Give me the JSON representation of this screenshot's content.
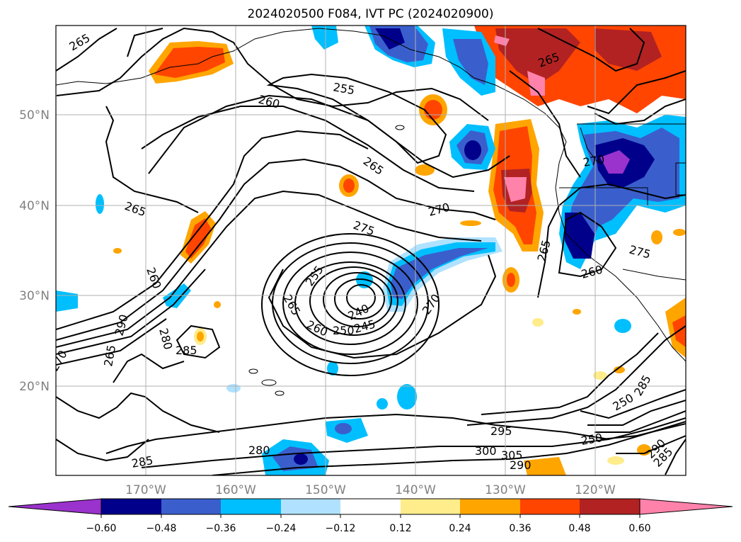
{
  "title": "2024020500 F084, IVT PC (2024020900)",
  "map": {
    "lat_labels": [
      "50°N",
      "40°N",
      "30°N",
      "20°N"
    ],
    "lon_labels": [
      "170°W",
      "160°W",
      "150°W",
      "140°W",
      "130°W",
      "120°W"
    ],
    "contour_labels": [
      "265",
      "260",
      "255",
      "265",
      "270",
      "275",
      "265",
      "260",
      "255",
      "260",
      "265",
      "240",
      "245",
      "250",
      "270",
      "265",
      "260",
      "265",
      "270",
      "275",
      "280",
      "290",
      "285",
      "265",
      "270",
      "285",
      "280",
      "295",
      "300",
      "305",
      "290",
      "250",
      "250",
      "285",
      "290",
      "285"
    ]
  },
  "colorbar": {
    "colors": [
      "#9a32cd",
      "#00008b",
      "#3a5fcd",
      "#00bfff",
      "#b0e2ff",
      "#ffffff",
      "#ffec8b",
      "#ffa500",
      "#ff4500",
      "#b22222",
      "#ff82ab"
    ],
    "tick_labels": [
      "−0.60",
      "−0.48",
      "−0.36",
      "−0.24",
      "−0.12",
      "0.12",
      "0.24",
      "0.36",
      "0.48",
      "0.60"
    ]
  }
}
